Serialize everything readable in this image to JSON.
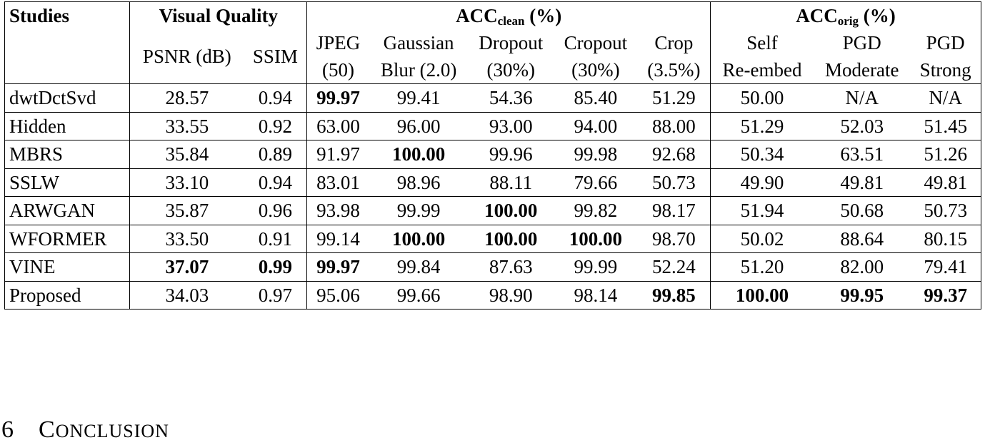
{
  "table": {
    "header": {
      "studies": "Studies",
      "visual_quality": "Visual Quality",
      "acc_clean_main": "ACC",
      "acc_clean_sub": "clean",
      "acc_clean_unit": " (%)",
      "acc_orig_main": "ACC",
      "acc_orig_sub": "orig",
      "acc_orig_unit": " (%)",
      "psnr": "PSNR (dB)",
      "ssim": "SSIM",
      "jpeg_1": "JPEG",
      "jpeg_2": "(50)",
      "gauss_1": "Gaussian",
      "gauss_2": "Blur (2.0)",
      "dropout_1": "Dropout",
      "dropout_2": "(30%)",
      "cropout_1": "Cropout",
      "cropout_2": "(30%)",
      "crop_1": "Crop",
      "crop_2": "(3.5%)",
      "self_1": "Self",
      "self_2": "Re-embed",
      "pgdm_1": "PGD",
      "pgdm_2": "Moderate",
      "pgds_1": "PGD",
      "pgds_2": "Strong"
    },
    "rows": [
      {
        "study": "dwtDctSvd",
        "psnr": "28.57",
        "ssim": "0.94",
        "jpeg": "99.97",
        "gauss": "99.41",
        "dropout": "54.36",
        "cropout": "85.40",
        "crop": "51.29",
        "self": "50.00",
        "pgdm": "N/A",
        "pgds": "N/A"
      },
      {
        "study": "Hidden",
        "psnr": "33.55",
        "ssim": "0.92",
        "jpeg": "63.00",
        "gauss": "96.00",
        "dropout": "93.00",
        "cropout": "94.00",
        "crop": "88.00",
        "self": "51.29",
        "pgdm": "52.03",
        "pgds": "51.45"
      },
      {
        "study": "MBRS",
        "psnr": "35.84",
        "ssim": "0.89",
        "jpeg": "91.97",
        "gauss": "100.00",
        "dropout": "99.96",
        "cropout": "99.98",
        "crop": "92.68",
        "self": "50.34",
        "pgdm": "63.51",
        "pgds": "51.26"
      },
      {
        "study": "SSLW",
        "psnr": "33.10",
        "ssim": "0.94",
        "jpeg": "83.01",
        "gauss": "98.96",
        "dropout": "88.11",
        "cropout": "79.66",
        "crop": "50.73",
        "self": "49.90",
        "pgdm": "49.81",
        "pgds": "49.81"
      },
      {
        "study": "ARWGAN",
        "psnr": "35.87",
        "ssim": "0.96",
        "jpeg": "93.98",
        "gauss": "99.99",
        "dropout": "100.00",
        "cropout": "99.82",
        "crop": "98.17",
        "self": "51.94",
        "pgdm": "50.68",
        "pgds": "50.73"
      },
      {
        "study": "WFORMER",
        "psnr": "33.50",
        "ssim": "0.91",
        "jpeg": "99.14",
        "gauss": "100.00",
        "dropout": "100.00",
        "cropout": "100.00",
        "crop": "98.70",
        "self": "50.02",
        "pgdm": "88.64",
        "pgds": "80.15"
      },
      {
        "study": "VINE",
        "psnr": "37.07",
        "ssim": "0.99",
        "jpeg": "99.97",
        "gauss": "99.84",
        "dropout": "87.63",
        "cropout": "99.99",
        "crop": "52.24",
        "self": "51.20",
        "pgdm": "82.00",
        "pgds": "79.41"
      },
      {
        "study": "Proposed",
        "psnr": "34.03",
        "ssim": "0.97",
        "jpeg": "95.06",
        "gauss": "99.66",
        "dropout": "98.90",
        "cropout": "98.14",
        "crop": "99.85",
        "self": "100.00",
        "pgdm": "99.95",
        "pgds": "99.37"
      }
    ]
  },
  "section": {
    "number": "6",
    "title_first": "C",
    "title_rest": "ONCLUSION"
  }
}
